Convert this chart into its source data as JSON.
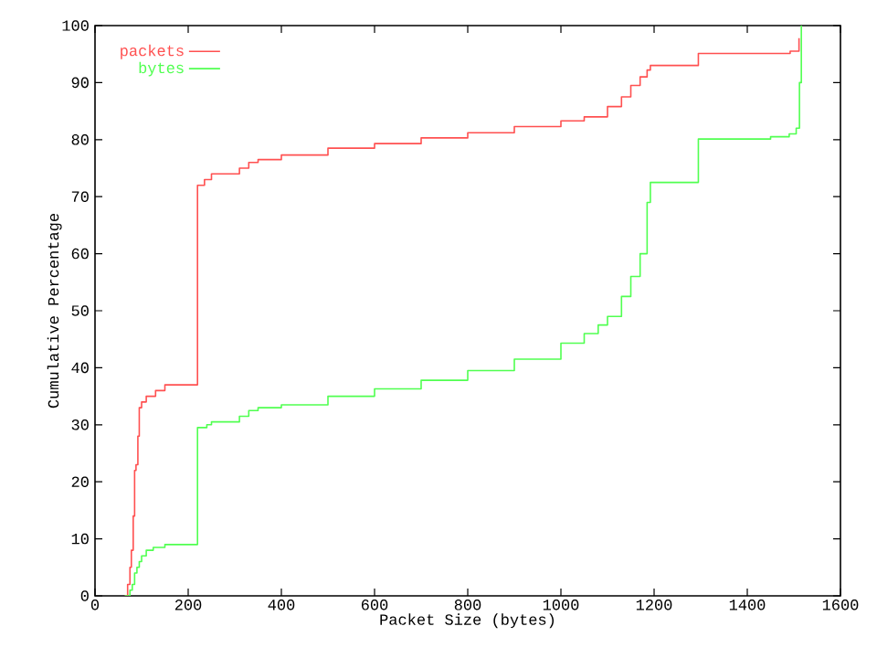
{
  "chart_data": {
    "type": "step",
    "xlabel": "Packet Size (bytes)",
    "ylabel": "Cumulative Percentage",
    "xlim": [
      0,
      1600
    ],
    "ylim": [
      0,
      100
    ],
    "xticks": [
      0,
      200,
      400,
      600,
      800,
      1000,
      1200,
      1400,
      1600
    ],
    "yticks": [
      0,
      10,
      20,
      30,
      40,
      50,
      60,
      70,
      80,
      90,
      100
    ],
    "grid": false,
    "legend": "top left",
    "series": [
      {
        "name": "packets",
        "color": "#ff5050",
        "x": [
          64,
          70,
          75,
          78,
          82,
          85,
          88,
          92,
          95,
          100,
          110,
          130,
          150,
          220,
          235,
          250,
          310,
          330,
          350,
          400,
          500,
          600,
          700,
          800,
          900,
          1000,
          1050,
          1100,
          1130,
          1150,
          1170,
          1185,
          1192,
          1295,
          1492,
          1511
        ],
        "values": [
          0,
          2,
          5,
          8,
          14,
          22,
          23,
          28,
          33,
          34,
          35,
          36,
          37,
          72,
          73,
          74,
          75,
          76,
          76.5,
          77.3,
          78.5,
          79.3,
          80.3,
          81.2,
          82.3,
          83.3,
          84,
          85.8,
          87.5,
          89.5,
          91,
          92.2,
          93,
          95.1,
          95.5,
          97.8
        ]
      },
      {
        "name": "bytes",
        "color": "#50ff50",
        "x": [
          64,
          75,
          80,
          85,
          90,
          95,
          100,
          110,
          125,
          150,
          220,
          240,
          250,
          310,
          330,
          350,
          400,
          500,
          600,
          700,
          800,
          900,
          1000,
          1050,
          1080,
          1100,
          1130,
          1150,
          1170,
          1185,
          1192,
          1295,
          1450,
          1490,
          1505,
          1512,
          1516
        ],
        "values": [
          0,
          1,
          2,
          4,
          5,
          6,
          7,
          8,
          8.5,
          9,
          29.5,
          30,
          30.5,
          31.5,
          32.5,
          33,
          33.5,
          35,
          36.3,
          37.8,
          39.5,
          41.5,
          44.3,
          46,
          47.5,
          49,
          52.5,
          56,
          60,
          69,
          72.5,
          80.1,
          80.5,
          81,
          82,
          90,
          100
        ]
      }
    ]
  }
}
